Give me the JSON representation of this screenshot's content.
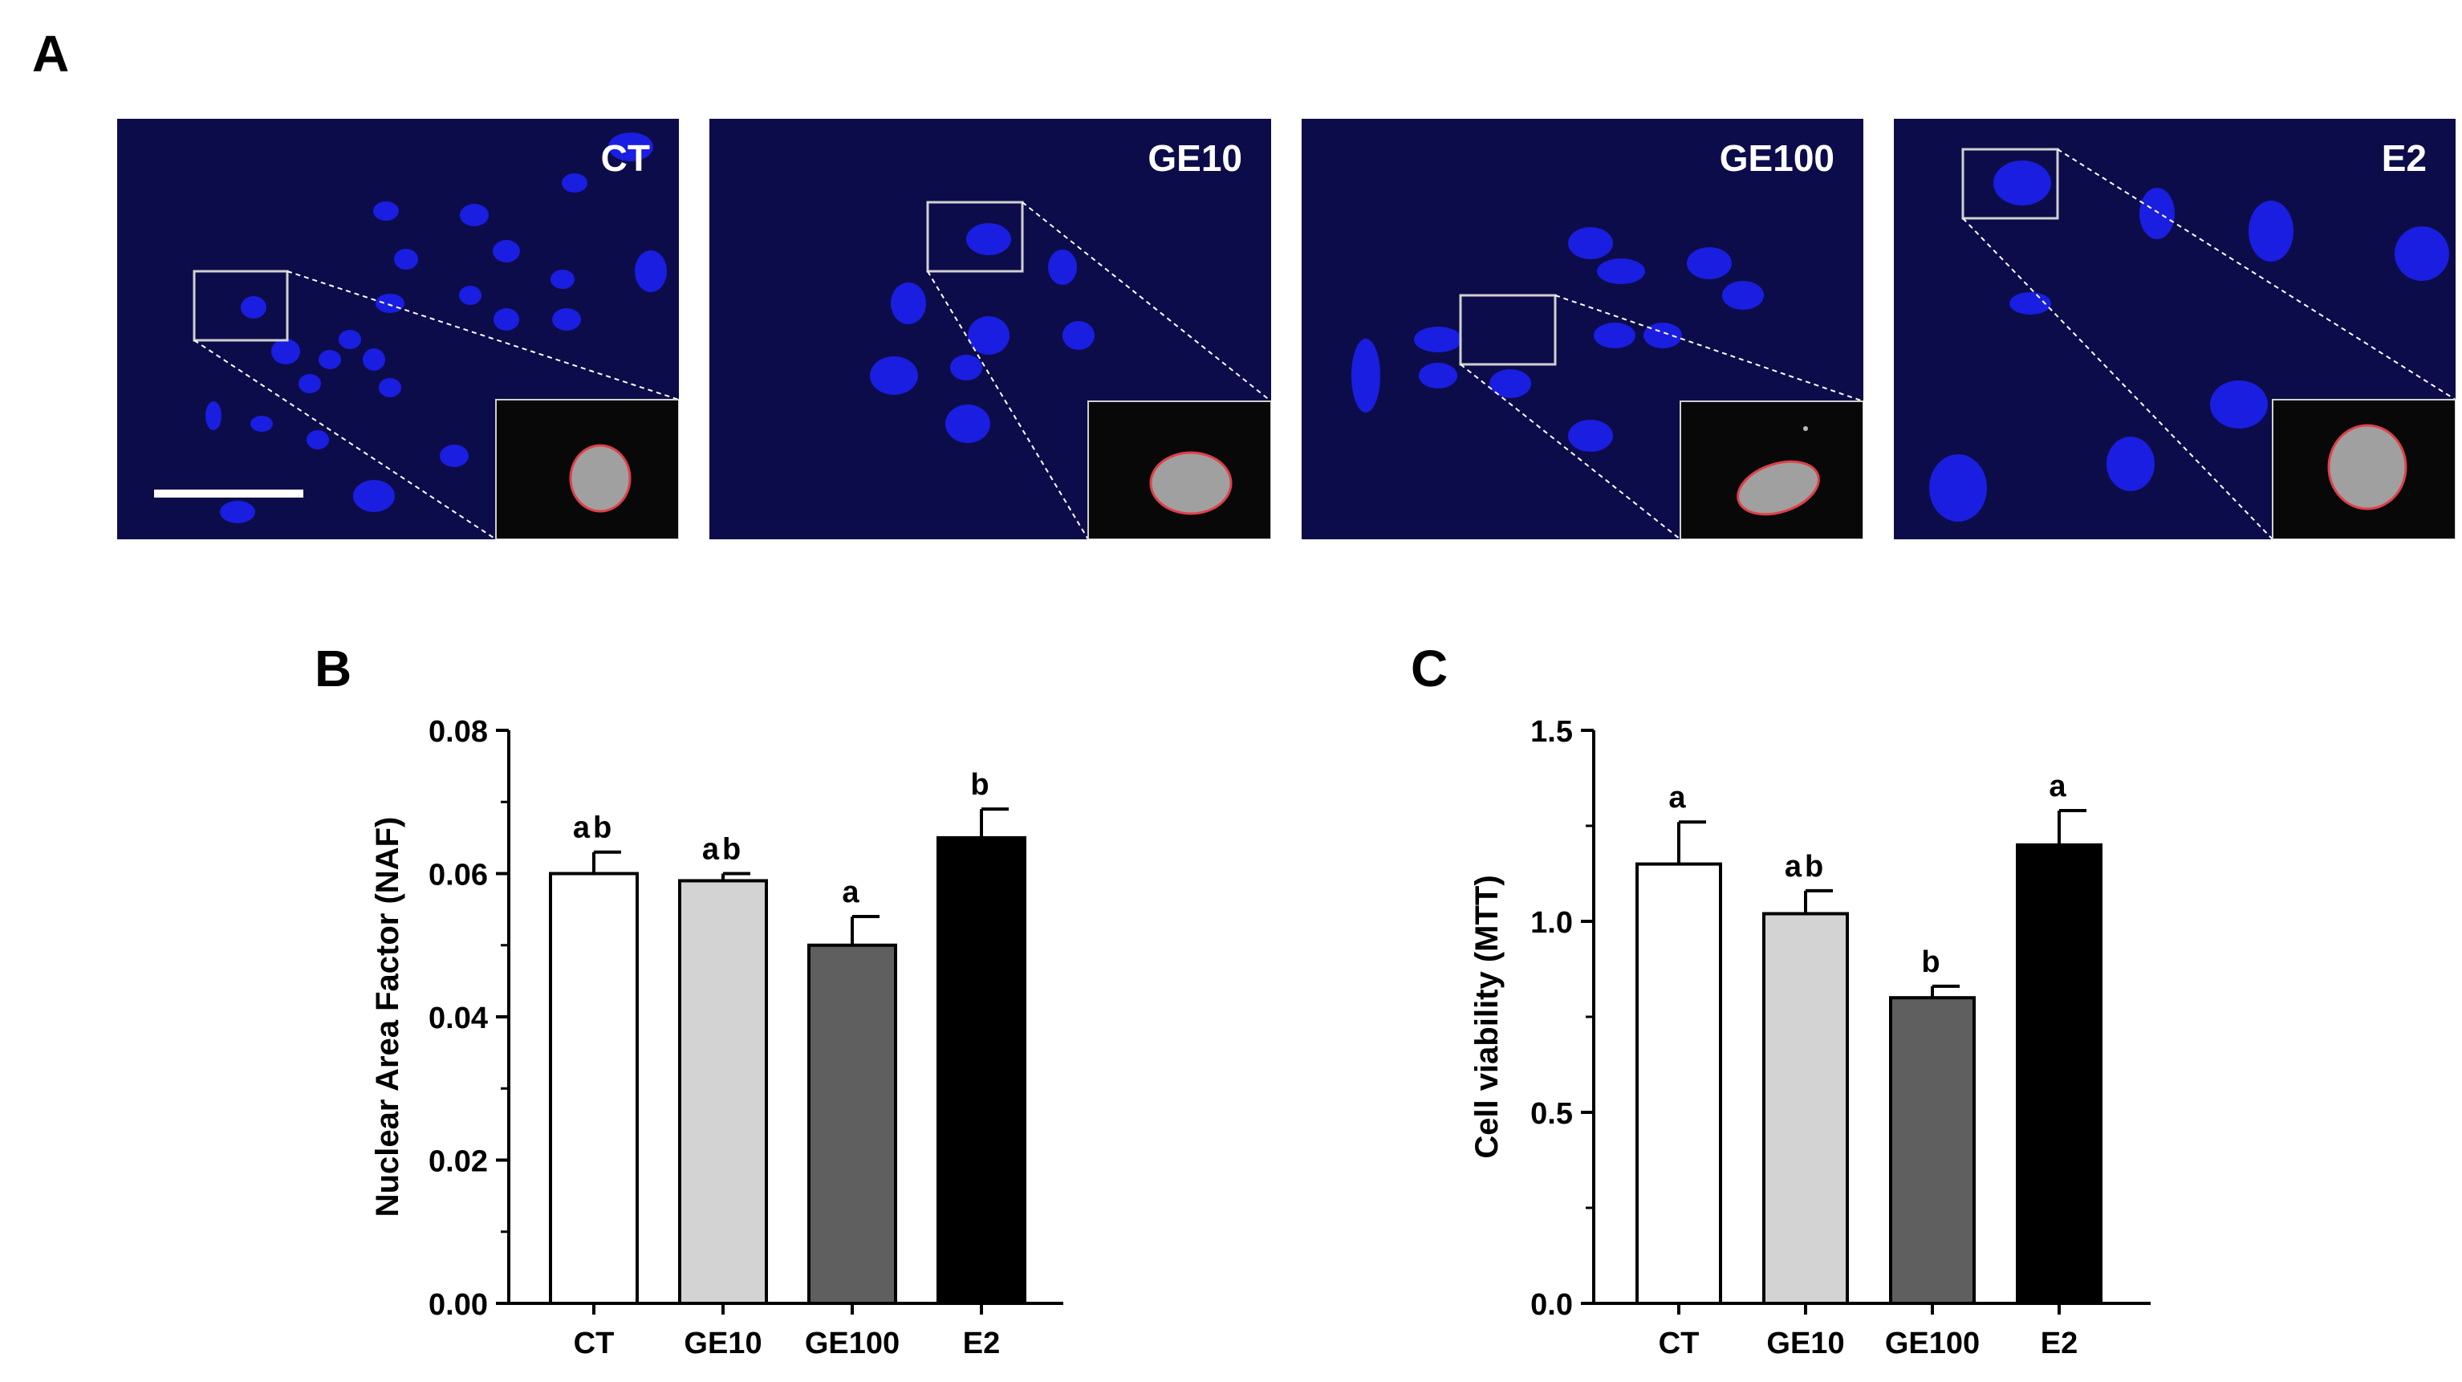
{
  "panel_labels": {
    "a": "A",
    "b": "B",
    "c": "C"
  },
  "micrographs": [
    {
      "label": "CT"
    },
    {
      "label": "GE10"
    },
    {
      "label": "GE100"
    },
    {
      "label": "E2"
    }
  ],
  "colors": {
    "background_field": "#0d0c4a",
    "nucleus": "#1a1ee0",
    "inset_outline": "#e0404a",
    "bar_fills": [
      "#ffffff",
      "#d3d3d3",
      "#5f5f5f",
      "#000000"
    ]
  },
  "chart_data": [
    {
      "type": "bar",
      "panel": "B",
      "categories": [
        "CT",
        "GE10",
        "GE100",
        "E2"
      ],
      "values": [
        0.06,
        0.059,
        0.05,
        0.065
      ],
      "errors": [
        0.003,
        0.001,
        0.004,
        0.004
      ],
      "annotations": [
        "ab",
        "ab",
        "a",
        "b"
      ],
      "ylabel": "Nuclear Area Factor (NAF)",
      "xlabel": "",
      "ylim": [
        0,
        0.08
      ],
      "yticks": [
        "0.00",
        "0.02",
        "0.04",
        "0.06",
        "0.08"
      ]
    },
    {
      "type": "bar",
      "panel": "C",
      "categories": [
        "CT",
        "GE10",
        "GE100",
        "E2"
      ],
      "values": [
        1.15,
        1.02,
        0.8,
        1.2
      ],
      "errors": [
        0.11,
        0.06,
        0.03,
        0.09
      ],
      "annotations": [
        "a",
        "ab",
        "b",
        "a"
      ],
      "ylabel": "Cell viability (MTT)",
      "xlabel": "",
      "ylim": [
        0,
        1.5
      ],
      "yticks": [
        "0.0",
        "0.5",
        "1.0",
        "1.5"
      ]
    }
  ]
}
